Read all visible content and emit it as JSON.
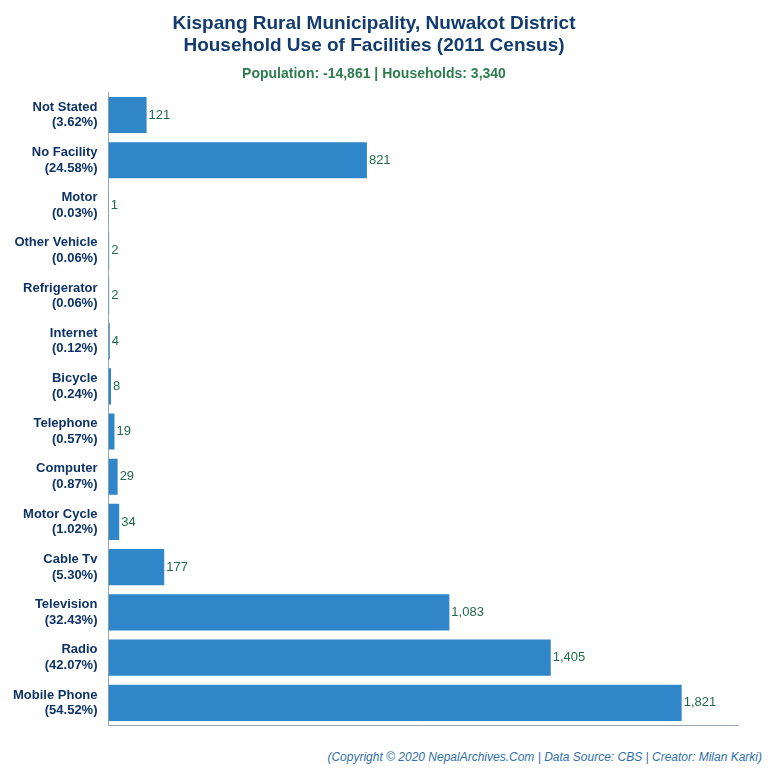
{
  "chart_data": {
    "type": "bar",
    "orientation": "horizontal",
    "title": [
      "Kispang Rural Municipality, Nuwakot District",
      "Household Use of Facilities (2011 Census)"
    ],
    "subtitle": "Population: -14,861 | Households: 3,340",
    "footer": "(Copyright © 2020 NepalArchives.Com | Data Source: CBS | Creator: Milan Karki)",
    "categories": [
      [
        "Not Stated",
        "(3.62%)"
      ],
      [
        "No Facility",
        "(24.58%)"
      ],
      [
        "Motor",
        "(0.03%)"
      ],
      [
        "Other Vehicle",
        "(0.06%)"
      ],
      [
        "Refrigerator",
        "(0.06%)"
      ],
      [
        "Internet",
        "(0.12%)"
      ],
      [
        "Bicycle",
        "(0.24%)"
      ],
      [
        "Telephone",
        "(0.57%)"
      ],
      [
        "Computer",
        "(0.87%)"
      ],
      [
        "Motor Cycle",
        "(1.02%)"
      ],
      [
        "Cable Tv",
        "(5.30%)"
      ],
      [
        "Television",
        "(32.43%)"
      ],
      [
        "Radio",
        "(42.07%)"
      ],
      [
        "Mobile Phone",
        "(54.52%)"
      ]
    ],
    "values": [
      121,
      821,
      1,
      2,
      2,
      4,
      8,
      19,
      29,
      34,
      177,
      1083,
      1405,
      1821
    ],
    "value_labels": [
      "121",
      "821",
      "1",
      "2",
      "2",
      "4",
      "8",
      "19",
      "29",
      "34",
      "177",
      "1,083",
      "1,405",
      "1,821"
    ],
    "color": "#2f86c8",
    "xlim": [
      0,
      2000
    ],
    "grid": false,
    "data_labels": true,
    "tick_labels": "y"
  }
}
